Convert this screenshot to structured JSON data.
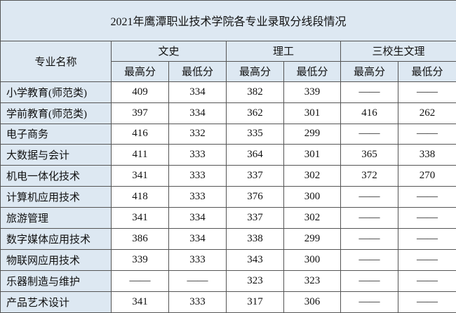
{
  "title": "2021年鹰潭职业技术学院各专业录取分线段情况",
  "header": {
    "major": "专业名称",
    "groups": [
      "文史",
      "理工",
      "三校生文理"
    ],
    "sub": [
      "最高分",
      "最低分",
      "最高分",
      "最低分",
      "最高分",
      "最低分"
    ]
  },
  "rows": [
    [
      "小学教育(师范类)",
      409,
      334,
      382,
      339,
      "——",
      "——"
    ],
    [
      "学前教育(师范类)",
      397,
      334,
      362,
      301,
      416,
      262
    ],
    [
      "电子商务",
      416,
      332,
      335,
      299,
      "——",
      "——"
    ],
    [
      "大数据与会计",
      411,
      333,
      364,
      301,
      365,
      338
    ],
    [
      "机电一体化技术",
      341,
      333,
      337,
      302,
      372,
      270
    ],
    [
      "计算机应用技术",
      418,
      333,
      376,
      300,
      "——",
      "——"
    ],
    [
      "旅游管理",
      341,
      334,
      337,
      302,
      "——",
      "——"
    ],
    [
      "数字媒体应用技术",
      386,
      334,
      338,
      299,
      "——",
      "——"
    ],
    [
      "物联网应用技术",
      339,
      333,
      343,
      300,
      "——",
      "——"
    ],
    [
      "乐器制造与维护",
      "——",
      "——",
      323,
      323,
      "——",
      "——"
    ],
    [
      "产品艺术设计",
      341,
      333,
      317,
      306,
      "——",
      "——"
    ]
  ]
}
